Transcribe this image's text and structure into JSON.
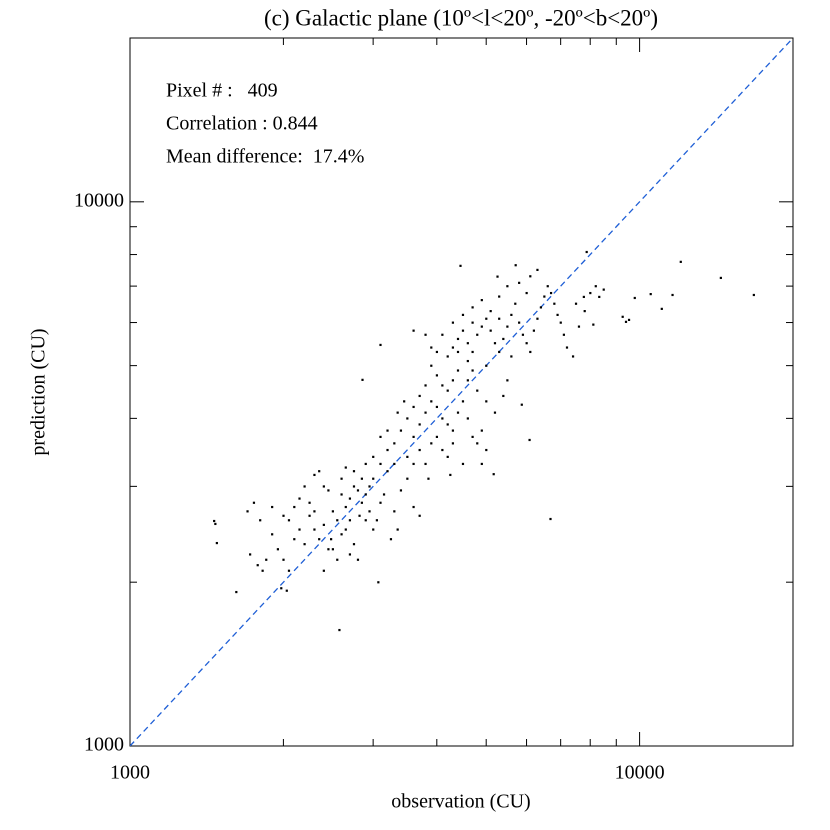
{
  "chart_data": {
    "type": "scatter",
    "title": "(c) Galactic plane (10º<l<20º, -20º<b<20º)",
    "x_label": "observation (CU)",
    "y_label": "prediction (CU)",
    "annotations": [
      "Pixel # :   409",
      "Correlation : 0.844",
      "Mean difference:  17.4%"
    ],
    "log_x": true,
    "log_y": true,
    "xlim": [
      1000,
      20000
    ],
    "ylim": [
      1000,
      20000
    ],
    "xticks": [
      1000,
      10000
    ],
    "yticks": [
      1000,
      10000
    ],
    "x_minor_ticks": [
      2000,
      3000,
      4000,
      5000,
      6000,
      7000,
      8000,
      9000
    ],
    "y_minor_ticks": [
      2000,
      3000,
      4000,
      5000,
      6000,
      7000,
      8000,
      9000
    ],
    "color": "#000000",
    "diagonal": true,
    "diagonal_color": "#1f5fd6",
    "x": [
      1462,
      1470,
      1480,
      1616,
      2575,
      3070,
      6683,
      16750,
      14430,
      12040,
      10510,
      11050,
      11600,
      9780,
      9260,
      9530,
      9400,
      7870,
      8110,
      8330,
      7770,
      4450,
      5710,
      5260,
      3100,
      2858,
      5870,
      6080,
      5170,
      1700,
      1750,
      1800,
      1720,
      1780,
      1820,
      1850,
      1900,
      1950,
      2000,
      2050,
      2100,
      2000,
      2050,
      1980,
      2030,
      2100,
      2150,
      2200,
      2250,
      2300,
      2350,
      2200,
      2250,
      2300,
      2350,
      2400,
      2450,
      2500,
      2550,
      2600,
      2650,
      2700,
      2750,
      2800,
      2850,
      2900,
      2950,
      3000,
      2600,
      2650,
      2700,
      2750,
      2800,
      2900,
      2950,
      3000,
      3050,
      3100,
      3150,
      3200,
      2500,
      2400,
      2550,
      2700,
      2850,
      2900,
      3000,
      2750,
      2600,
      3300,
      3400,
      3500,
      3600,
      3700,
      3350,
      3250,
      2450,
      2300,
      2150,
      1900,
      2400,
      2650,
      3100,
      3200,
      2480,
      2820,
      3300,
      3400,
      3500,
      3600,
      3700,
      3800,
      3900,
      4000,
      4100,
      4200,
      3500,
      3600,
      3700,
      3800,
      3900,
      4000,
      4100,
      4200,
      4300,
      4400,
      4500,
      4600,
      4700,
      4800,
      4900,
      5000,
      4500,
      4300,
      4200,
      4300,
      4400,
      4100,
      4000,
      3900,
      3800,
      3700,
      3600,
      3450,
      3350,
      4600,
      4700,
      4800,
      5000,
      5200,
      5400,
      5500,
      3200,
      3100,
      4900,
      4250,
      3850,
      3300,
      4200,
      4300,
      4400,
      4500,
      4600,
      4700,
      4800,
      4900,
      5000,
      5100,
      5200,
      5300,
      5400,
      5500,
      5600,
      5700,
      5800,
      5900,
      6000,
      6100,
      6200,
      6300,
      6400,
      6500,
      6600,
      6700,
      6800,
      6900,
      7000,
      7100,
      7200,
      4000,
      4100,
      4300,
      4500,
      4700,
      4900,
      5100,
      5300,
      5500,
      5800,
      6100,
      6300,
      6000,
      5600,
      5000,
      4600,
      4400,
      7400,
      7600,
      7500,
      7800,
      8000,
      8200,
      8500,
      4700,
      5300,
      3900,
      3800,
      3600
    ],
    "values": [
      2592,
      2560,
      2361,
      1919,
      1634,
      2000,
      2614,
      6745,
      7250,
      7760,
      6770,
      6360,
      6745,
      6660,
      6150,
      6070,
      6020,
      8090,
      5950,
      6690,
      6690,
      7630,
      7650,
      7290,
      5460,
      4710,
      4240,
      3652,
      3160,
      2700,
      2800,
      2600,
      2250,
      2150,
      2100,
      2200,
      2450,
      2300,
      2650,
      2600,
      2750,
      2200,
      2100,
      1950,
      1930,
      2400,
      2500,
      2350,
      2800,
      3150,
      3200,
      3000,
      2650,
      2500,
      2400,
      2550,
      2300,
      2700,
      2600,
      2900,
      2750,
      2850,
      3000,
      2950,
      2800,
      2900,
      3000,
      3100,
      2450,
      2500,
      2600,
      2350,
      2200,
      2600,
      2700,
      2500,
      2600,
      2800,
      2900,
      3200,
      2300,
      2100,
      2200,
      2250,
      3100,
      3300,
      3400,
      3200,
      3100,
      2700,
      2950,
      3100,
      2750,
      2650,
      2500,
      2400,
      2950,
      2700,
      2850,
      2750,
      3000,
      3250,
      3300,
      3500,
      2400,
      2650,
      3600,
      3800,
      4000,
      3700,
      3900,
      4100,
      4300,
      4200,
      4000,
      3900,
      3400,
      3300,
      3500,
      3300,
      3600,
      3700,
      3500,
      3400,
      3800,
      4100,
      4300,
      4000,
      3700,
      3600,
      3800,
      3500,
      3300,
      3600,
      4500,
      4700,
      4900,
      4600,
      4800,
      5000,
      4600,
      4400,
      4200,
      4300,
      4100,
      4700,
      4900,
      4500,
      4300,
      4100,
      4400,
      4700,
      3800,
      3700,
      3300,
      3150,
      3100,
      3300,
      5200,
      5400,
      5600,
      5800,
      5500,
      5300,
      5700,
      5900,
      6100,
      5800,
      5500,
      5300,
      5600,
      5900,
      6200,
      6500,
      6000,
      5700,
      5500,
      5300,
      5800,
      6100,
      6400,
      6700,
      7000,
      6800,
      6500,
      6200,
      6000,
      5700,
      5400,
      5300,
      5700,
      6000,
      6200,
      6400,
      6600,
      6300,
      6700,
      7000,
      7100,
      7300,
      7500,
      6800,
      5200,
      5000,
      5100,
      5300,
      5200,
      5900,
      6500,
      6300,
      6800,
      7000,
      6900,
      6000,
      6100,
      5400,
      5700,
      5800
    ]
  }
}
